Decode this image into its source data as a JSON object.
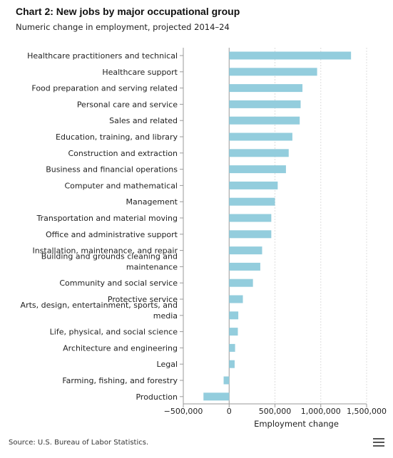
{
  "title": "Chart 2: New jobs by major occupational group",
  "subtitle": "Numeric change in employment, projected 2014–24",
  "source": "Source: U.S. Bureau of Labor Statistics.",
  "menu_icon": "hamburger-menu-icon",
  "colors": {
    "bar": "#93cddd",
    "axis": "#999999",
    "grid": "#dddddd"
  },
  "chart_data": {
    "type": "bar",
    "orientation": "horizontal",
    "categories": [
      [
        "Healthcare practitioners and technical"
      ],
      [
        "Healthcare support"
      ],
      [
        "Food preparation and serving related"
      ],
      [
        "Personal care and service"
      ],
      [
        "Sales and related"
      ],
      [
        "Education, training, and library"
      ],
      [
        "Construction and extraction"
      ],
      [
        "Business and financial operations"
      ],
      [
        "Computer and mathematical"
      ],
      [
        "Management"
      ],
      [
        "Transportation and material moving"
      ],
      [
        "Office and administrative support"
      ],
      [
        "Installation, maintenance, and repair"
      ],
      [
        "Building and grounds cleaning and",
        "maintenance"
      ],
      [
        "Community and social service"
      ],
      [
        "Protective service"
      ],
      [
        "Arts, design, entertainment, sports, and",
        "media"
      ],
      [
        "Life, physical, and social science"
      ],
      [
        "Architecture and engineering"
      ],
      [
        "Legal"
      ],
      [
        "Farming, fishing, and forestry"
      ],
      [
        "Production"
      ]
    ],
    "values": [
      1330000,
      960000,
      800000,
      780000,
      770000,
      690000,
      650000,
      620000,
      530000,
      500000,
      460000,
      460000,
      360000,
      340000,
      260000,
      150000,
      100000,
      95000,
      65000,
      60000,
      -60000,
      -280000
    ],
    "xlabel": "Employment change",
    "ylabel": "",
    "xlim": [
      -500000,
      1500000
    ],
    "xticks": [
      -500000,
      0,
      500000,
      1000000,
      1500000
    ],
    "xtick_labels": [
      "−500,000",
      "0",
      "500,000",
      "1,000,000",
      "1,500,000"
    ],
    "grid": "vertical dashed",
    "legend": "none"
  }
}
